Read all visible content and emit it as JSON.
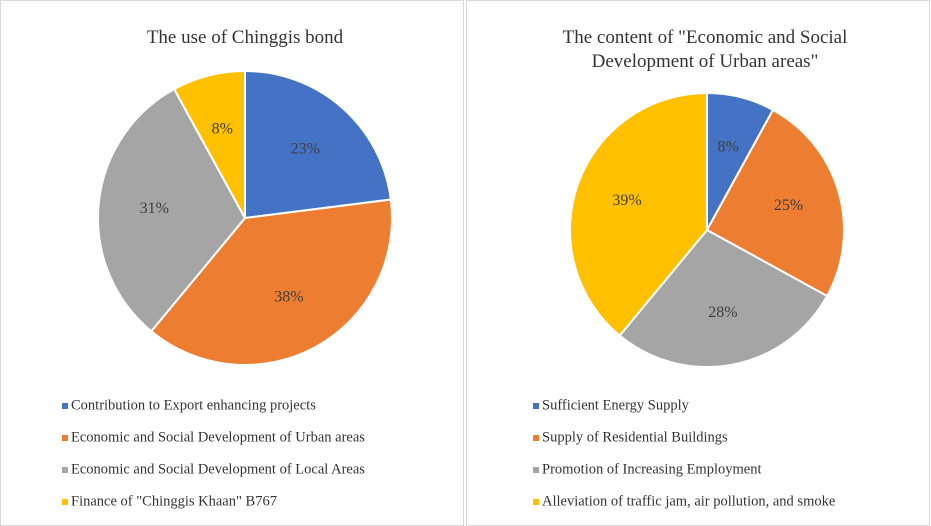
{
  "chart_data": [
    {
      "type": "pie",
      "title": "The use of Chinggis bond",
      "categories": [
        "Contribution to Export enhancing projects",
        "Economic and Social Development of Urban areas",
        "Economic and Social Development of Local Areas",
        "Finance of \"Chinggis Khaan\" B767"
      ],
      "values": [
        23,
        38,
        31,
        8
      ],
      "value_labels": [
        "23%",
        "38%",
        "31%",
        "8%"
      ],
      "colors": [
        "#4472c4",
        "#ed7d31",
        "#a5a5a5",
        "#ffc000"
      ]
    },
    {
      "type": "pie",
      "title": "The content of \"Economic and Social Development of Urban areas\"",
      "categories": [
        "Sufficient Energy Supply",
        "Supply of Residential Buildings",
        "Promotion of Increasing Employment",
        "Alleviation of traffic jam, air pollution, and smoke"
      ],
      "values": [
        8,
        25,
        28,
        39
      ],
      "value_labels": [
        "8%",
        "25%",
        "28%",
        "39%"
      ],
      "colors": [
        "#4472c4",
        "#ed7d31",
        "#a5a5a5",
        "#ffc000"
      ]
    }
  ]
}
